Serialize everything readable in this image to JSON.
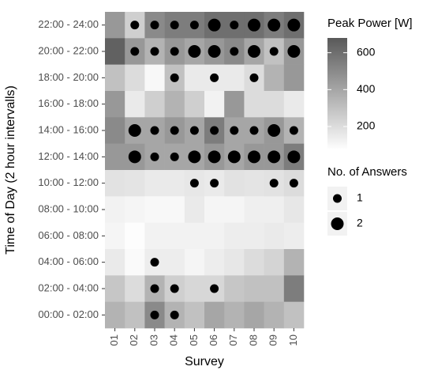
{
  "chart_data": {
    "type": "heatmap",
    "x_label": "Survey",
    "y_label": "Time of Day (2 hour intervalls)",
    "categories": [
      "01",
      "02",
      "03",
      "04",
      "05",
      "06",
      "07",
      "08",
      "09",
      "10"
    ],
    "rows": [
      "22:00 - 24:00",
      "20:00 - 22:00",
      "18:00 - 20:00",
      "16:00 - 18:00",
      "14:00 - 16:00",
      "12:00 - 14:00",
      "10:00 - 12:00",
      "08:00 - 10:00",
      "06:00 - 08:00",
      "04:00 - 06:00",
      "02:00 - 04:00",
      "00:00 - 02:00"
    ],
    "values": [
      [
        450,
        250,
        500,
        550,
        550,
        600,
        600,
        600,
        550,
        600
      ],
      [
        650,
        450,
        350,
        450,
        400,
        450,
        500,
        400,
        300,
        450
      ],
      [
        300,
        200,
        100,
        300,
        150,
        150,
        150,
        200,
        350,
        450
      ],
      [
        450,
        150,
        250,
        350,
        250,
        120,
        450,
        200,
        200,
        150
      ],
      [
        500,
        400,
        400,
        450,
        400,
        550,
        400,
        400,
        450,
        350
      ],
      [
        450,
        450,
        400,
        400,
        400,
        450,
        400,
        450,
        450,
        550
      ],
      [
        180,
        170,
        150,
        150,
        160,
        150,
        180,
        170,
        180,
        200
      ],
      [
        120,
        110,
        100,
        100,
        150,
        110,
        110,
        130,
        130,
        160
      ],
      [
        110,
        80,
        120,
        120,
        120,
        120,
        140,
        140,
        150,
        140
      ],
      [
        150,
        90,
        140,
        140,
        110,
        140,
        160,
        200,
        230,
        350
      ],
      [
        280,
        200,
        350,
        250,
        220,
        220,
        280,
        300,
        300,
        550
      ],
      [
        350,
        300,
        500,
        350,
        300,
        400,
        350,
        400,
        350,
        300
      ]
    ],
    "answers": [
      [
        null,
        1,
        1,
        1,
        1,
        2,
        1,
        2,
        2,
        2
      ],
      [
        null,
        1,
        1,
        1,
        2,
        2,
        1,
        2,
        1,
        2
      ],
      [
        null,
        null,
        null,
        1,
        null,
        1,
        null,
        1,
        null,
        null
      ],
      [
        null,
        null,
        null,
        null,
        null,
        null,
        null,
        null,
        null,
        null
      ],
      [
        null,
        2,
        1,
        1,
        1,
        1,
        1,
        1,
        2,
        1
      ],
      [
        null,
        2,
        1,
        1,
        2,
        2,
        2,
        2,
        2,
        2
      ],
      [
        null,
        null,
        null,
        null,
        1,
        1,
        null,
        null,
        1,
        1
      ],
      [
        null,
        null,
        null,
        null,
        null,
        null,
        null,
        null,
        null,
        null
      ],
      [
        null,
        null,
        null,
        null,
        null,
        null,
        null,
        null,
        null,
        null
      ],
      [
        null,
        null,
        1,
        null,
        null,
        null,
        null,
        null,
        null,
        null
      ],
      [
        null,
        null,
        1,
        1,
        null,
        1,
        null,
        null,
        null,
        null
      ],
      [
        null,
        null,
        1,
        1,
        null,
        null,
        null,
        null,
        null,
        null
      ]
    ],
    "color_legend": {
      "title": "Peak Power [W]",
      "clim": [
        80,
        680
      ],
      "ticks": [
        200,
        400,
        600
      ],
      "low": "#fdfdfd",
      "high": "#595959"
    },
    "size_legend": {
      "title": "No. of Answers",
      "values": [
        1,
        2
      ]
    },
    "dot_color": "#000000"
  }
}
